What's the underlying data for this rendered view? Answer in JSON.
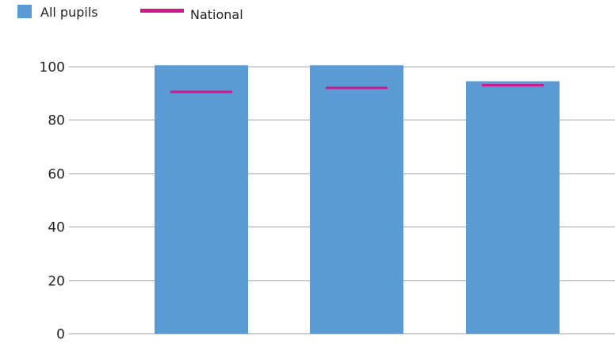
{
  "chart_data": {
    "type": "bar",
    "categories": [
      "",
      "",
      ""
    ],
    "series": [
      {
        "name": "All pupils",
        "kind": "bar",
        "values": [
          100.5,
          100.5,
          94.5
        ]
      },
      {
        "name": "National",
        "kind": "marker",
        "values": [
          90.5,
          92,
          93
        ]
      }
    ],
    "ylim": [
      0,
      100
    ],
    "yticks": [
      0,
      20,
      40,
      60,
      80,
      100
    ],
    "grid": true,
    "legend": "top-left",
    "colors": {
      "bar": "#5b9bd5",
      "marker": "#d0198a",
      "grid": "#a6a6a6",
      "axis_text": "#222222"
    }
  }
}
